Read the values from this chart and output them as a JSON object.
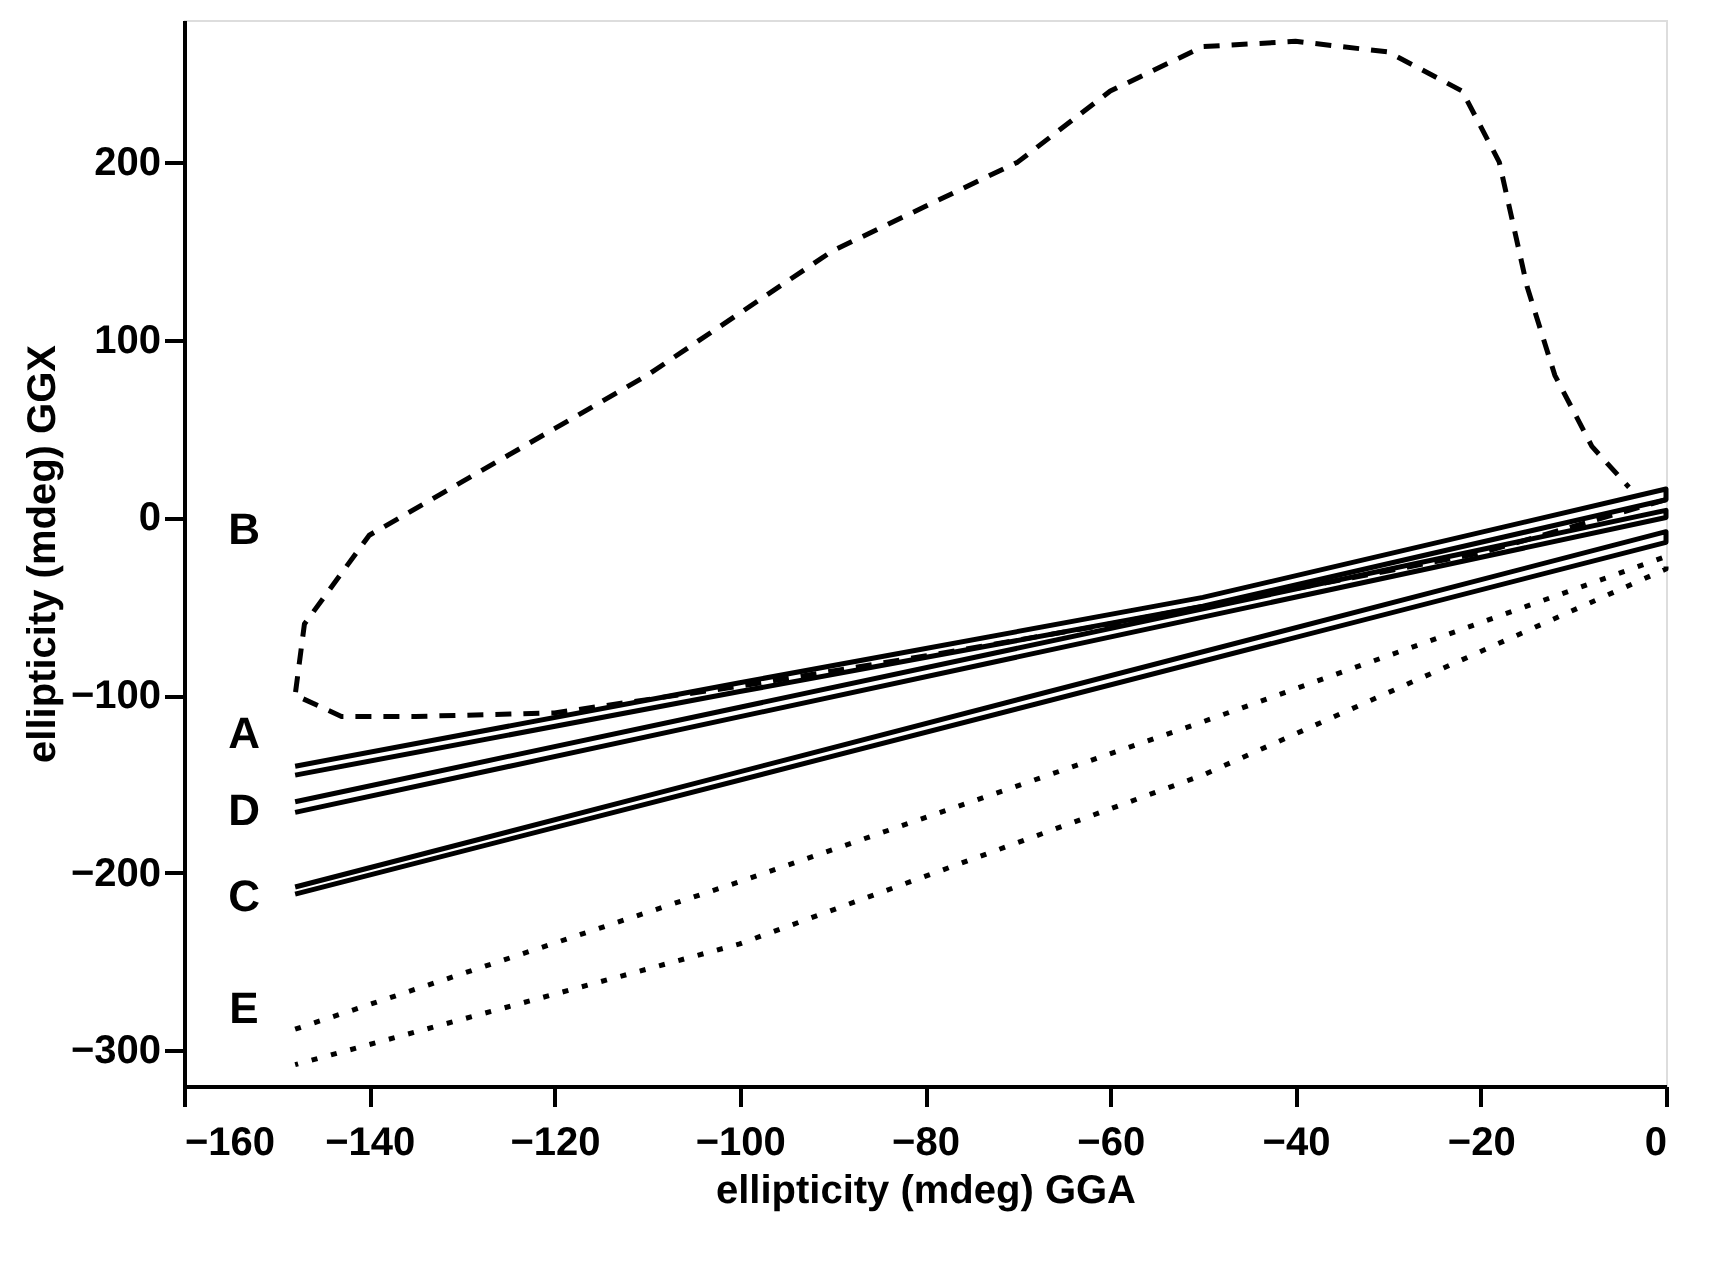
{
  "chart_data": {
    "type": "line",
    "xlabel": "ellipticity (mdeg) GGA",
    "ylabel": "ellipticity   (mdeg)   GGX",
    "xlim": [
      -160,
      0
    ],
    "ylim": [
      -320,
      280
    ],
    "xticks": [
      -160,
      -140,
      -120,
      -100,
      -80,
      -60,
      -40,
      -20,
      0
    ],
    "yticks": [
      -300,
      -200,
      -100,
      0,
      100,
      200
    ],
    "grid": false,
    "marker": "none",
    "series": [
      {
        "color": "#000000",
        "line_style": "solid",
        "x": [
          -148,
          -100,
          -50,
          0,
          0,
          -50,
          -100,
          -148
        ],
        "values": [
          -140,
          -93,
          -45,
          16,
          10,
          -50,
          -98,
          -145
        ]
      },
      {
        "color": "#000000",
        "line_style": "solid",
        "x": [
          -148,
          0,
          0,
          -148
        ],
        "values": [
          -160,
          4,
          0,
          -166
        ]
      },
      {
        "color": "#000000",
        "line_style": "solid",
        "x": [
          -148,
          0,
          0,
          -148
        ],
        "values": [
          -208,
          -8,
          -14,
          -212
        ]
      },
      {
        "color": "#000000",
        "line_style": "dotted",
        "x": [
          -148,
          -100,
          -50,
          0,
          0,
          -50,
          -100,
          -148
        ],
        "values": [
          -288,
          -205,
          -115,
          -22,
          -29,
          -145,
          -240,
          -308
        ]
      },
      {
        "color": "#000000",
        "line_style": "dashed",
        "x": [
          0,
          -20,
          -40,
          -60,
          -80,
          -100,
          -120,
          -135,
          -143,
          -148,
          -147,
          -140,
          -130,
          -120,
          -110,
          -100,
          -90,
          -80,
          -70,
          -60,
          -50,
          -40,
          -30,
          -22,
          -18,
          -15,
          -12,
          -8,
          -4
        ],
        "values": [
          10,
          -20,
          -40,
          -60,
          -78,
          -95,
          -110,
          -112,
          -112,
          -100,
          -60,
          -10,
          20,
          50,
          80,
          115,
          150,
          175,
          200,
          240,
          265,
          268,
          262,
          240,
          200,
          130,
          80,
          40,
          17
        ]
      }
    ],
    "annotations": [
      "B",
      "A",
      "D",
      "C",
      "E"
    ]
  }
}
